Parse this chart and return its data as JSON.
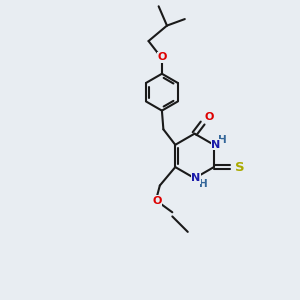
{
  "bg_color": "#e8edf2",
  "bond_color": "#1a1a1a",
  "atom_colors": {
    "O": "#dd0000",
    "N": "#1a1aaa",
    "S": "#aaaa00",
    "NH_color": "#336699"
  },
  "lw": 1.5,
  "fs": 8.0,
  "xlim": [
    0,
    10
  ],
  "ylim": [
    0,
    10
  ]
}
